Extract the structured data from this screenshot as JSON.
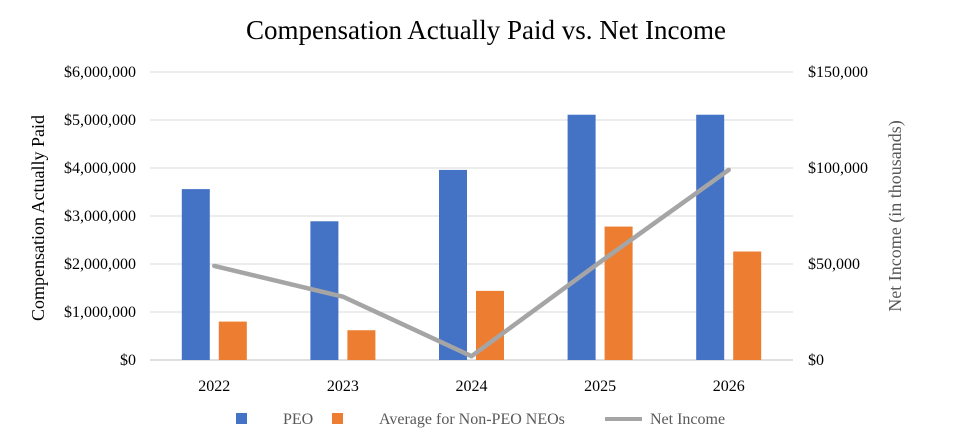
{
  "chart_data": {
    "type": "bar",
    "title": "Compensation Actually Paid vs. Net Income",
    "categories": [
      "2022",
      "2023",
      "2024",
      "2025",
      "2026"
    ],
    "series": [
      {
        "name": "PEO",
        "kind": "bar",
        "axis": "left",
        "color": "#4472C4",
        "values": [
          3560000,
          2890000,
          3960000,
          5110000,
          5110000
        ]
      },
      {
        "name": "Average for Non-PEO NEOs",
        "kind": "bar",
        "axis": "left",
        "color": "#ED7D31",
        "values": [
          800000,
          620000,
          1440000,
          2780000,
          2260000
        ]
      }
    ],
    "line_series": [
      {
        "name": "Net Income",
        "kind": "line",
        "axis": "right",
        "color": "#A5A5A5",
        "values": [
          49000,
          33000,
          2000,
          51000,
          99000
        ]
      }
    ],
    "ylabel": "Compensation Actually Paid",
    "y2label": "Net Income (in thousands)",
    "ylim": [
      0,
      6000000
    ],
    "y2lim": [
      0,
      150000
    ],
    "yticks": [
      "$0",
      "$1,000,000",
      "$2,000,000",
      "$3,000,000",
      "$4,000,000",
      "$5,000,000",
      "$6,000,000"
    ],
    "y2ticks": [
      "$0",
      "$50,000",
      "$100,000",
      "$150,000"
    ],
    "grid": true,
    "legend": "bottom"
  }
}
